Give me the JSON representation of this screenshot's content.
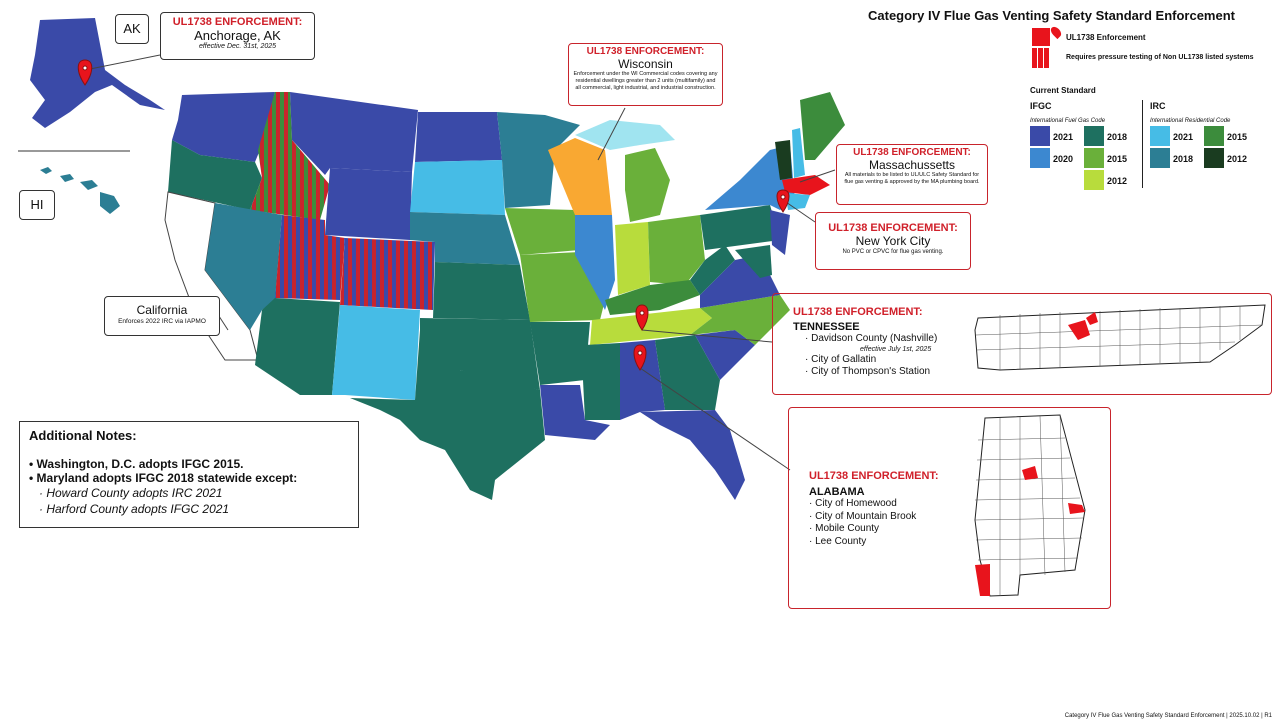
{
  "header": {
    "title": "Category IV Flue Gas Venting Safety  Standard Enforcement"
  },
  "legend": {
    "ul1738_enforcement": "UL1738 Enforcement",
    "pressure_testing": "Requires pressure testing of Non UL1738 listed systems",
    "current_standard": "Current Standard",
    "ifgc": {
      "heading": "IFGC",
      "subheading": "International Fuel Gas Code",
      "items": [
        {
          "year": "2021",
          "color": "#3a4aa8"
        },
        {
          "year": "2018",
          "color": "#1e7060"
        },
        {
          "year": "2020",
          "color": "#3c88d0"
        },
        {
          "year": "2015",
          "color": "#6ab03a"
        },
        {
          "year": "2012",
          "color": "#b8dc3c"
        }
      ]
    },
    "irc": {
      "heading": "IRC",
      "subheading": "International Residential Code",
      "items": [
        {
          "year": "2021",
          "color": "#46bce6"
        },
        {
          "year": "2015",
          "color": "#3c8c3c"
        },
        {
          "year": "2018",
          "color": "#2c7e94"
        },
        {
          "year": "2012",
          "color": "#1a3c20"
        }
      ]
    }
  },
  "insets": {
    "ak": "AK",
    "hi": "HI"
  },
  "callouts": {
    "anchorage": {
      "heading": "UL1738 ENFORCEMENT:",
      "place": "Anchorage, AK",
      "note": "effective Dec. 31st, 2025"
    },
    "wisconsin": {
      "heading": "UL1738 ENFORCEMENT:",
      "place": "Wisconsin",
      "note": "Enforcement under the WI Commercial codes covering any residential dwellings greater than 2 units (multifamily) and all commercial, light industrial, and industrial construction."
    },
    "massachusetts": {
      "heading": "UL1738 ENFORCEMENT:",
      "place": "Massachussetts",
      "note": "All materials to be listed to UL/ULC Safety Standard for flue gas venting & approved by the MA plumbing board."
    },
    "nyc": {
      "heading": "UL1738 ENFORCEMENT:",
      "place": "New York City",
      "note": "No PVC or CPVC for flue gas venting."
    },
    "tennessee": {
      "heading": "UL1738 ENFORCEMENT:",
      "place": "TENNESSEE",
      "items": [
        "Davidson County (Nashville)",
        "effective July 1st, 2025",
        "City of Gallatin",
        "City of Thompson's Station"
      ]
    },
    "alabama": {
      "heading": "UL1738 ENFORCEMENT:",
      "place": "ALABAMA",
      "items": [
        "City of Homewood",
        "City of Mountain Brook",
        "Mobile County",
        "Lee County"
      ]
    },
    "california": {
      "place": "California",
      "note": "Enforces 2022 IRC via IAPMO"
    }
  },
  "notes": {
    "title": "Additional Notes:",
    "items": [
      "Washington, D.C. adopts IFGC 2015.",
      "Maryland adopts IFGC 2018 statewide except:"
    ],
    "subitems": [
      "Howard County adopts IRC 2021",
      "Harford County adopts IFGC 2021"
    ]
  },
  "footer": "Category IV Flue Gas Venting Safety Standard Enforcement | 2025.10.02 | R1"
}
